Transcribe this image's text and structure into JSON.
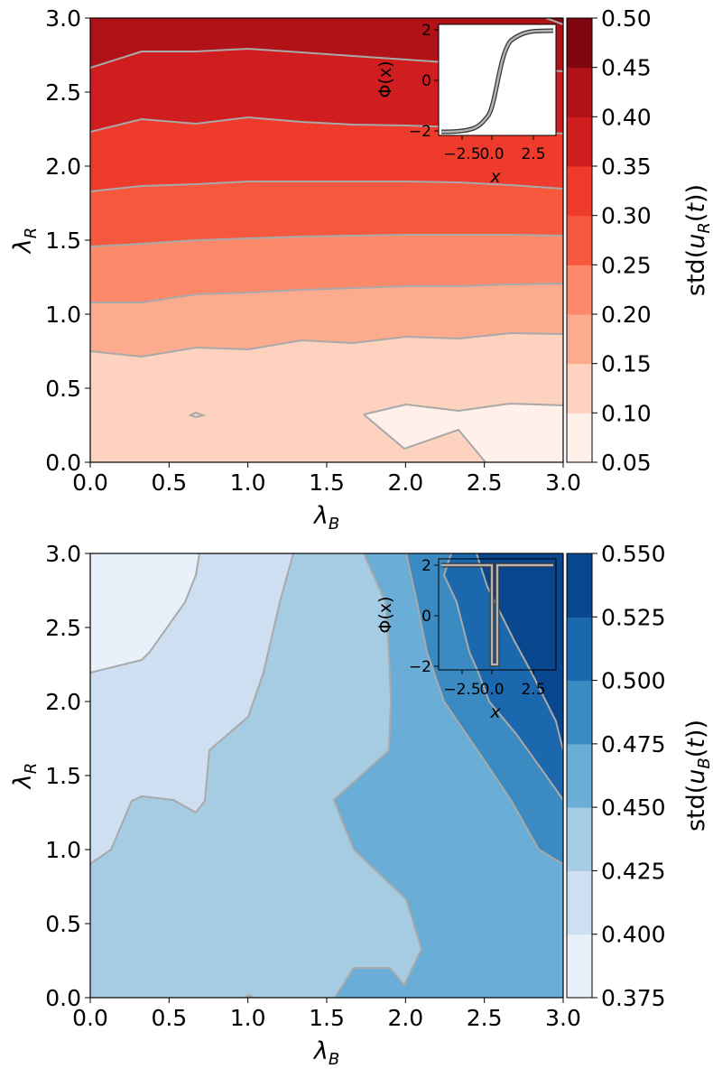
{
  "colors": {
    "reds": [
      "#fff0e9",
      "#fdd2bf",
      "#fcab8f",
      "#fc8a6a",
      "#f6583e",
      "#ee3b2c",
      "#d01d1f",
      "#b11218",
      "#7f0510"
    ],
    "blues": [
      "#e8f1fa",
      "#cddff1",
      "#a5cce3",
      "#6aadd6",
      "#3b8bc2",
      "#1c68ae",
      "#08468e"
    ],
    "contour_line": "#a9a9a9"
  },
  "chart_data": [
    {
      "type": "contourf",
      "title": "",
      "xlabel": "λ_B",
      "ylabel": "λ_R",
      "xlim": [
        0,
        3
      ],
      "ylim": [
        0,
        3
      ],
      "x_ticks": [
        "0.0",
        "0.5",
        "1.0",
        "1.5",
        "2.0",
        "2.5",
        "3.0"
      ],
      "y_ticks": [
        "0.0",
        "0.5",
        "1.0",
        "1.5",
        "2.0",
        "2.5",
        "3.0"
      ],
      "colorbar": {
        "label": "std(u_R(t))",
        "levels": [
          0.05,
          0.1,
          0.15,
          0.2,
          0.25,
          0.3,
          0.35,
          0.4,
          0.45,
          0.5
        ],
        "tick_labels": [
          "0.05",
          "0.10",
          "0.15",
          "0.20",
          "0.25",
          "0.30",
          "0.35",
          "0.40",
          "0.45",
          "0.50"
        ],
        "colormap": "Reds"
      },
      "contour_lines": [
        {
          "level": 0.15,
          "points": [
            [
              0.0,
              0.75
            ],
            [
              0.33,
              0.72
            ],
            [
              0.67,
              0.78
            ],
            [
              1.0,
              0.77
            ],
            [
              1.33,
              0.83
            ],
            [
              1.67,
              0.81
            ],
            [
              2.0,
              0.85
            ],
            [
              2.33,
              0.84
            ],
            [
              2.67,
              0.88
            ],
            [
              3.0,
              0.87
            ]
          ]
        },
        {
          "level": 0.2,
          "points": [
            [
              0.0,
              1.09
            ],
            [
              0.33,
              1.09
            ],
            [
              0.67,
              1.14
            ],
            [
              1.0,
              1.15
            ],
            [
              1.33,
              1.18
            ],
            [
              1.67,
              1.19
            ],
            [
              2.0,
              1.2
            ],
            [
              2.33,
              1.2
            ],
            [
              2.67,
              1.21
            ],
            [
              3.0,
              1.22
            ]
          ]
        },
        {
          "level": 0.25,
          "points": [
            [
              0.0,
              1.46
            ],
            [
              0.33,
              1.48
            ],
            [
              0.67,
              1.5
            ],
            [
              1.0,
              1.52
            ],
            [
              1.33,
              1.53
            ],
            [
              1.67,
              1.54
            ],
            [
              2.0,
              1.54
            ],
            [
              2.33,
              1.54
            ],
            [
              2.67,
              1.54
            ],
            [
              3.0,
              1.53
            ]
          ]
        },
        {
          "level": 0.3,
          "points": [
            [
              0.0,
              1.83
            ],
            [
              0.33,
              1.87
            ],
            [
              0.67,
              1.88
            ],
            [
              1.0,
              1.9
            ],
            [
              1.33,
              1.9
            ],
            [
              1.67,
              1.9
            ],
            [
              2.0,
              1.9
            ],
            [
              2.33,
              1.89
            ],
            [
              2.67,
              1.87
            ],
            [
              3.0,
              1.85
            ]
          ]
        },
        {
          "level": 0.35,
          "points": [
            [
              0.0,
              2.24
            ],
            [
              0.33,
              2.31
            ],
            [
              0.67,
              2.29
            ],
            [
              1.0,
              2.32
            ],
            [
              1.33,
              2.31
            ],
            [
              1.67,
              2.28
            ],
            [
              2.0,
              2.27
            ],
            [
              2.33,
              2.26
            ],
            [
              2.67,
              2.24
            ],
            [
              3.0,
              2.21
            ]
          ]
        },
        {
          "level": 0.4,
          "points": [
            [
              0.0,
              2.67
            ],
            [
              0.33,
              2.78
            ],
            [
              0.67,
              2.78
            ],
            [
              1.0,
              2.82
            ],
            [
              1.33,
              2.77
            ],
            [
              1.67,
              2.75
            ],
            [
              2.0,
              2.72
            ],
            [
              2.33,
              2.69
            ],
            [
              2.67,
              2.66
            ],
            [
              3.0,
              2.64
            ]
          ]
        },
        {
          "level": 0.45,
          "points": [
            [
              2.88,
              3.0
            ],
            [
              3.0,
              2.96
            ]
          ]
        }
      ],
      "inset": {
        "function": "tanh",
        "xlabel": "x",
        "ylabel": "Φ(x)",
        "xlim": [
          -3.5,
          3.5
        ],
        "ylim": [
          -2.3,
          2.3
        ],
        "x_ticks": [
          "−2.5",
          "0.0",
          "2.5"
        ],
        "y_ticks": [
          "−2",
          "0",
          "2"
        ]
      }
    },
    {
      "type": "contourf",
      "title": "",
      "xlabel": "λ_B",
      "ylabel": "λ_R",
      "xlim": [
        0,
        3
      ],
      "ylim": [
        0,
        3
      ],
      "x_ticks": [
        "0.0",
        "0.5",
        "1.0",
        "1.5",
        "2.0",
        "2.5",
        "3.0"
      ],
      "y_ticks": [
        "0.0",
        "0.5",
        "1.0",
        "1.5",
        "2.0",
        "2.5",
        "3.0"
      ],
      "colorbar": {
        "label": "std(u_B(t))",
        "levels": [
          0.375,
          0.4,
          0.425,
          0.45,
          0.475,
          0.5,
          0.525,
          0.55
        ],
        "tick_labels": [
          "0.375",
          "0.400",
          "0.425",
          "0.450",
          "0.475",
          "0.500",
          "0.525",
          "0.550"
        ],
        "colormap": "Blues"
      },
      "contour_lines": [
        {
          "level": 0.4,
          "points": [
            [
              0.0,
              2.2
            ],
            [
              0.33,
              2.3
            ],
            [
              0.38,
              2.35
            ],
            [
              0.6,
              2.67
            ],
            [
              0.67,
              2.9
            ],
            [
              0.69,
              3.0
            ]
          ]
        },
        {
          "level": 0.425,
          "points": [
            [
              0.0,
              0.9
            ],
            [
              0.13,
              1.0
            ],
            [
              0.27,
              1.33
            ],
            [
              0.32,
              1.37
            ],
            [
              0.53,
              1.33
            ],
            [
              0.67,
              1.25
            ],
            [
              0.73,
              1.33
            ],
            [
              0.76,
              1.67
            ],
            [
              1.0,
              2.0
            ],
            [
              1.1,
              2.33
            ],
            [
              1.23,
              2.67
            ],
            [
              1.33,
              3.0
            ]
          ]
        },
        {
          "level": 0.45,
          "points": [
            [
              1.0,
              0.0
            ],
            [
              1.03,
              0.02
            ],
            [
              1.07,
              0.0
            ]
          ]
        },
        {
          "level": 0.45,
          "points": [
            [
              1.73,
              3.0
            ],
            [
              1.87,
              2.67
            ],
            [
              1.9,
              2.33
            ],
            [
              1.91,
              2.0
            ],
            [
              1.9,
              1.67
            ],
            [
              1.55,
              1.33
            ],
            [
              1.67,
              1.0
            ],
            [
              2.0,
              0.67
            ],
            [
              2.1,
              0.33
            ],
            [
              2.0,
              0.08
            ],
            [
              1.9,
              0.2
            ],
            [
              1.67,
              0.2
            ],
            [
              1.55,
              0.0
            ]
          ]
        },
        {
          "level": 0.475,
          "points": [
            [
              2.0,
              3.0
            ],
            [
              2.07,
              2.67
            ],
            [
              2.2,
              2.33
            ],
            [
              2.33,
              2.0
            ],
            [
              2.55,
              1.67
            ],
            [
              2.85,
              1.33
            ],
            [
              3.0,
              1.0
            ]
          ]
        },
        {
          "level": 0.5,
          "points": [
            [
              2.45,
              3.0
            ],
            [
              2.63,
              2.67
            ],
            [
              2.8,
              2.33
            ],
            [
              2.92,
              2.0
            ],
            [
              3.0,
              1.67
            ]
          ]
        },
        {
          "level": 0.525,
          "points": [
            [
              2.9,
              3.0
            ],
            [
              3.0,
              2.9
            ]
          ]
        }
      ],
      "inset": {
        "function": "notch",
        "xlabel": "x",
        "ylabel": "Φ(x)",
        "xlim": [
          -3.5,
          3.5
        ],
        "ylim": [
          -2.3,
          2.3
        ],
        "x_ticks": [
          "−2.5",
          "0.0",
          "2.5"
        ],
        "y_ticks": [
          "−2",
          "0",
          "2"
        ]
      }
    }
  ]
}
